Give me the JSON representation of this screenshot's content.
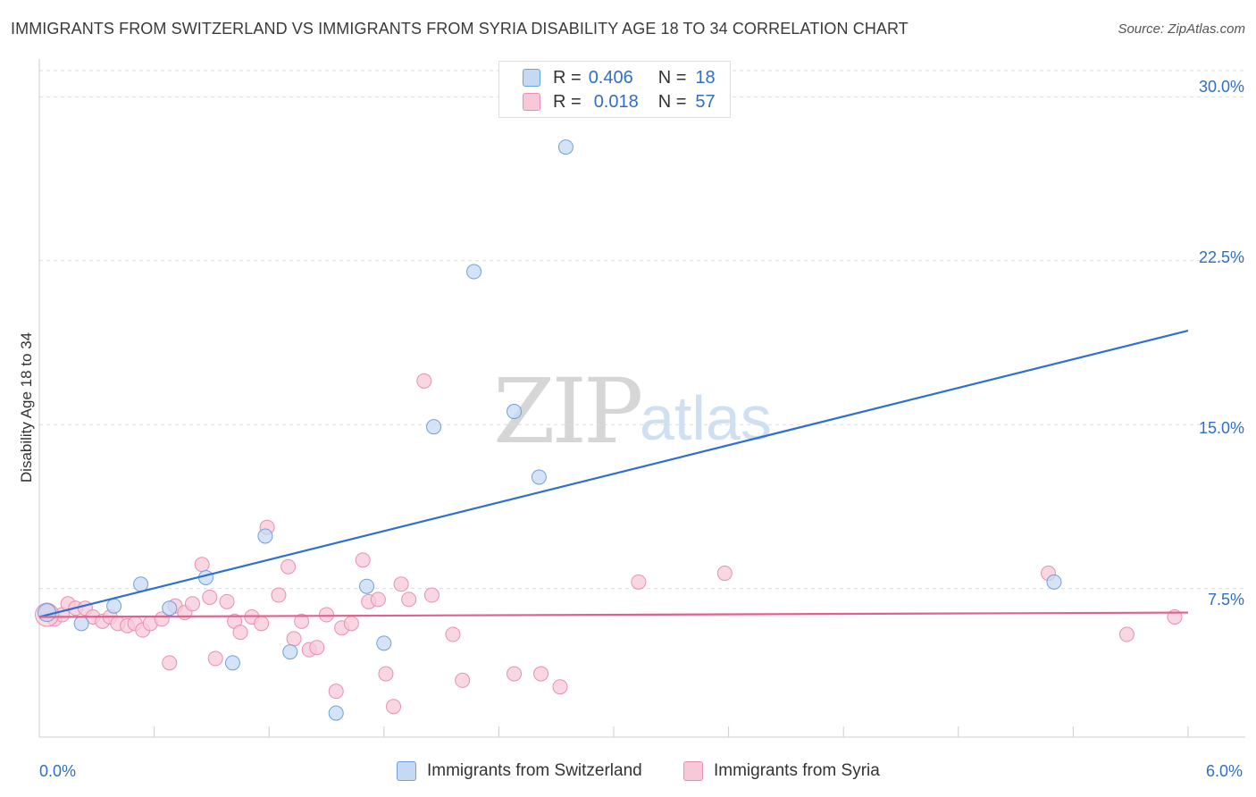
{
  "title": "IMMIGRANTS FROM SWITZERLAND VS IMMIGRANTS FROM SYRIA DISABILITY AGE 18 TO 34 CORRELATION CHART",
  "source": "Source: ZipAtlas.com",
  "watermark": {
    "zip": "ZIP",
    "atlas": "atlas"
  },
  "legend": {
    "rows": [
      {
        "r_label": "R =",
        "r_value": "0.406",
        "n_label": "N =",
        "n_value": "18"
      },
      {
        "r_label": "R =",
        "r_value": "0.018",
        "n_label": "N =",
        "n_value": "57"
      }
    ]
  },
  "bottom_legend": [
    "Immigrants from Switzerland",
    "Immigrants from Syria"
  ],
  "chart_data": {
    "type": "scatter",
    "title": "IMMIGRANTS FROM SWITZERLAND VS IMMIGRANTS FROM SYRIA DISABILITY AGE 18 TO 34 CORRELATION CHART",
    "xlabel": "",
    "ylabel": "Disability Age 18 to 34",
    "xlim": [
      0,
      6.0
    ],
    "ylim": [
      0.7,
      31.2
    ],
    "x_tick_labels": [
      "0.0%",
      "6.0%"
    ],
    "y_ticks": [
      7.5,
      15.0,
      22.5,
      30.0
    ],
    "y_tick_labels": [
      "7.5%",
      "15.0%",
      "22.5%",
      "30.0%"
    ],
    "grid": true,
    "legend_position": "top-center",
    "series": [
      {
        "name": "Immigrants from Switzerland",
        "color": "#6fa0e0",
        "fill": "#c5d9f3",
        "line_color": "#2f6fd0",
        "r": 0.406,
        "n": 18,
        "trend": [
          [
            0.0,
            6.2
          ],
          [
            6.0,
            19.3
          ]
        ],
        "points": [
          [
            0.04,
            6.5
          ],
          [
            0.22,
            5.9
          ],
          [
            0.39,
            6.7
          ],
          [
            0.53,
            7.7
          ],
          [
            0.68,
            6.6
          ],
          [
            0.87,
            8.0
          ],
          [
            1.01,
            4.1
          ],
          [
            1.18,
            9.9
          ],
          [
            1.31,
            4.6
          ],
          [
            1.55,
            1.8
          ],
          [
            1.71,
            7.6
          ],
          [
            1.8,
            5.0
          ],
          [
            2.06,
            14.9
          ],
          [
            2.27,
            22.0
          ],
          [
            2.48,
            15.6
          ],
          [
            2.61,
            12.6
          ],
          [
            2.75,
            27.7
          ],
          [
            5.3,
            7.8
          ]
        ]
      },
      {
        "name": "Immigrants from Syria",
        "color": "#ea8fae",
        "fill": "#f7c9d8",
        "line_color": "#e2608e",
        "r": 0.018,
        "n": 57,
        "trend": [
          [
            0.0,
            6.2
          ],
          [
            6.0,
            6.4
          ]
        ],
        "points": [
          [
            0.03,
            6.4
          ],
          [
            0.08,
            6.1
          ],
          [
            0.12,
            6.3
          ],
          [
            0.15,
            6.8
          ],
          [
            0.19,
            6.6
          ],
          [
            0.24,
            6.6
          ],
          [
            0.28,
            6.2
          ],
          [
            0.33,
            6.0
          ],
          [
            0.37,
            6.2
          ],
          [
            0.41,
            5.9
          ],
          [
            0.46,
            5.8
          ],
          [
            0.5,
            5.9
          ],
          [
            0.54,
            5.6
          ],
          [
            0.58,
            5.9
          ],
          [
            0.64,
            6.1
          ],
          [
            0.68,
            4.1
          ],
          [
            0.71,
            6.7
          ],
          [
            0.76,
            6.4
          ],
          [
            0.8,
            6.8
          ],
          [
            0.85,
            8.6
          ],
          [
            0.89,
            7.1
          ],
          [
            0.92,
            4.3
          ],
          [
            0.98,
            6.9
          ],
          [
            1.02,
            6.0
          ],
          [
            1.05,
            5.5
          ],
          [
            1.11,
            6.2
          ],
          [
            1.16,
            5.9
          ],
          [
            1.19,
            10.3
          ],
          [
            1.25,
            7.2
          ],
          [
            1.3,
            8.5
          ],
          [
            1.33,
            5.2
          ],
          [
            1.37,
            6.0
          ],
          [
            1.41,
            4.7
          ],
          [
            1.45,
            4.8
          ],
          [
            1.5,
            6.3
          ],
          [
            1.55,
            2.8
          ],
          [
            1.58,
            5.7
          ],
          [
            1.63,
            5.9
          ],
          [
            1.69,
            8.8
          ],
          [
            1.72,
            6.9
          ],
          [
            1.77,
            7.0
          ],
          [
            1.81,
            3.6
          ],
          [
            1.85,
            2.1
          ],
          [
            1.89,
            7.7
          ],
          [
            1.93,
            7.0
          ],
          [
            2.01,
            17.0
          ],
          [
            2.05,
            7.2
          ],
          [
            2.16,
            5.4
          ],
          [
            2.21,
            3.3
          ],
          [
            2.48,
            3.6
          ],
          [
            2.62,
            3.6
          ],
          [
            2.72,
            3.0
          ],
          [
            3.13,
            7.8
          ],
          [
            3.58,
            8.2
          ],
          [
            5.27,
            8.2
          ],
          [
            5.68,
            5.4
          ],
          [
            5.93,
            6.2
          ]
        ]
      }
    ]
  },
  "colors": {
    "accent_blue": "#2f6fc6",
    "grid": "#dddddd",
    "axis": "#cccccc"
  }
}
